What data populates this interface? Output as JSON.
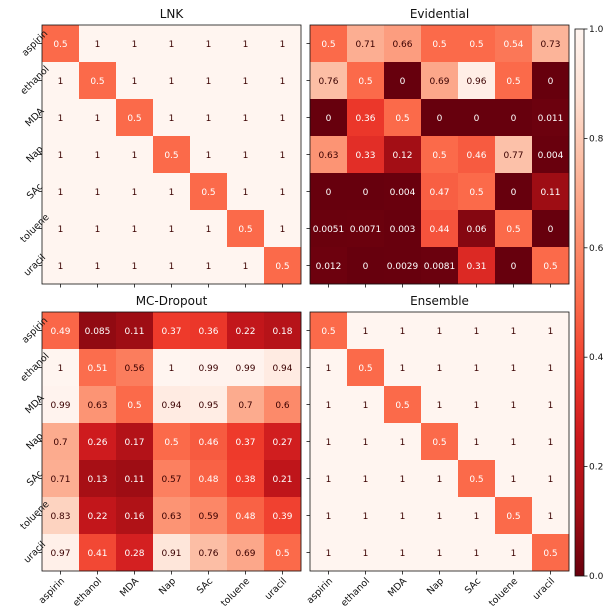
{
  "chart_data": {
    "type": "heatmap",
    "categories": [
      "aspirin",
      "ethanol",
      "MDA",
      "Nap",
      "SAc",
      "toluene",
      "uracil"
    ],
    "colorbar": {
      "ticks": [
        0.0,
        0.2,
        0.4,
        0.6,
        0.8,
        1.0
      ],
      "tick_labels": [
        "0.0",
        "0.2",
        "0.4",
        "0.6",
        "0.8",
        "1.0"
      ],
      "vmin": 0,
      "vmax": 1,
      "colormap": "Reds (reversed)"
    },
    "panels": [
      {
        "title": "LNK",
        "values": [
          [
            0.5,
            1,
            1,
            1,
            1,
            1,
            1
          ],
          [
            1,
            0.5,
            1,
            1,
            1,
            1,
            1
          ],
          [
            1,
            1,
            0.5,
            1,
            1,
            1,
            1
          ],
          [
            1,
            1,
            1,
            0.5,
            1,
            1,
            1
          ],
          [
            1,
            1,
            1,
            1,
            0.5,
            1,
            1
          ],
          [
            1,
            1,
            1,
            1,
            1,
            0.5,
            1
          ],
          [
            1,
            1,
            1,
            1,
            1,
            1,
            0.5
          ]
        ],
        "labels": [
          [
            "0.5",
            "1",
            "1",
            "1",
            "1",
            "1",
            "1"
          ],
          [
            "1",
            "0.5",
            "1",
            "1",
            "1",
            "1",
            "1"
          ],
          [
            "1",
            "1",
            "0.5",
            "1",
            "1",
            "1",
            "1"
          ],
          [
            "1",
            "1",
            "1",
            "0.5",
            "1",
            "1",
            "1"
          ],
          [
            "1",
            "1",
            "1",
            "1",
            "0.5",
            "1",
            "1"
          ],
          [
            "1",
            "1",
            "1",
            "1",
            "1",
            "0.5",
            "1"
          ],
          [
            "1",
            "1",
            "1",
            "1",
            "1",
            "1",
            "0.5"
          ]
        ]
      },
      {
        "title": "Evidential",
        "values": [
          [
            0.5,
            0.71,
            0.66,
            0.5,
            0.5,
            0.54,
            0.73
          ],
          [
            0.76,
            0.5,
            0,
            0.69,
            0.96,
            0.5,
            0
          ],
          [
            0,
            0.36,
            0.5,
            0,
            0,
            0,
            0.011
          ],
          [
            0.63,
            0.33,
            0.12,
            0.5,
            0.46,
            0.77,
            0.004
          ],
          [
            0,
            0,
            0.004,
            0.47,
            0.5,
            0,
            0.11
          ],
          [
            0.0051,
            0.0071,
            0.003,
            0.44,
            0.06,
            0.5,
            0
          ],
          [
            0.012,
            0,
            0.0029,
            0.0081,
            0.31,
            0,
            0.5
          ]
        ],
        "labels": [
          [
            "0.5",
            "0.71",
            "0.66",
            "0.5",
            "0.5",
            "0.54",
            "0.73"
          ],
          [
            "0.76",
            "0.5",
            "0",
            "0.69",
            "0.96",
            "0.5",
            "0"
          ],
          [
            "0",
            "0.36",
            "0.5",
            "0",
            "0",
            "0",
            "0.011"
          ],
          [
            "0.63",
            "0.33",
            "0.12",
            "0.5",
            "0.46",
            "0.77",
            "0.004"
          ],
          [
            "0",
            "0",
            "0.004",
            "0.47",
            "0.5",
            "0",
            "0.11"
          ],
          [
            "0.0051",
            "0.0071",
            "0.003",
            "0.44",
            "0.06",
            "0.5",
            "0"
          ],
          [
            "0.012",
            "0",
            "0.0029",
            "0.0081",
            "0.31",
            "0",
            "0.5"
          ]
        ]
      },
      {
        "title": "MC-Dropout",
        "values": [
          [
            0.49,
            0.085,
            0.11,
            0.37,
            0.36,
            0.22,
            0.18
          ],
          [
            1,
            0.51,
            0.56,
            1,
            0.99,
            0.99,
            0.94
          ],
          [
            0.99,
            0.63,
            0.5,
            0.94,
            0.95,
            0.7,
            0.6
          ],
          [
            0.7,
            0.26,
            0.17,
            0.5,
            0.46,
            0.37,
            0.27
          ],
          [
            0.71,
            0.13,
            0.11,
            0.57,
            0.48,
            0.38,
            0.21
          ],
          [
            0.83,
            0.22,
            0.16,
            0.63,
            0.59,
            0.48,
            0.39
          ],
          [
            0.97,
            0.41,
            0.28,
            0.91,
            0.76,
            0.69,
            0.5
          ]
        ],
        "labels": [
          [
            "0.49",
            "0.085",
            "0.11",
            "0.37",
            "0.36",
            "0.22",
            "0.18"
          ],
          [
            "1",
            "0.51",
            "0.56",
            "1",
            "0.99",
            "0.99",
            "0.94"
          ],
          [
            "0.99",
            "0.63",
            "0.5",
            "0.94",
            "0.95",
            "0.7",
            "0.6"
          ],
          [
            "0.7",
            "0.26",
            "0.17",
            "0.5",
            "0.46",
            "0.37",
            "0.27"
          ],
          [
            "0.71",
            "0.13",
            "0.11",
            "0.57",
            "0.48",
            "0.38",
            "0.21"
          ],
          [
            "0.83",
            "0.22",
            "0.16",
            "0.63",
            "0.59",
            "0.48",
            "0.39"
          ],
          [
            "0.97",
            "0.41",
            "0.28",
            "0.91",
            "0.76",
            "0.69",
            "0.5"
          ]
        ]
      },
      {
        "title": "Ensemble",
        "values": [
          [
            0.5,
            1,
            1,
            1,
            1,
            1,
            1
          ],
          [
            1,
            0.5,
            1,
            1,
            1,
            1,
            1
          ],
          [
            1,
            1,
            0.5,
            1,
            1,
            1,
            1
          ],
          [
            1,
            1,
            1,
            0.5,
            1,
            1,
            1
          ],
          [
            1,
            1,
            1,
            1,
            0.5,
            1,
            1
          ],
          [
            1,
            1,
            1,
            1,
            1,
            0.5,
            1
          ],
          [
            1,
            1,
            1,
            1,
            1,
            1,
            0.5
          ]
        ],
        "labels": [
          [
            "0.5",
            "1",
            "1",
            "1",
            "1",
            "1",
            "1"
          ],
          [
            "1",
            "0.5",
            "1",
            "1",
            "1",
            "1",
            "1"
          ],
          [
            "1",
            "1",
            "0.5",
            "1",
            "1",
            "1",
            "1"
          ],
          [
            "1",
            "1",
            "1",
            "0.5",
            "1",
            "1",
            "1"
          ],
          [
            "1",
            "1",
            "1",
            "1",
            "0.5",
            "1",
            "1"
          ],
          [
            "1",
            "1",
            "1",
            "1",
            "1",
            "0.5",
            "1"
          ],
          [
            "1",
            "1",
            "1",
            "1",
            "1",
            "1",
            "0.5"
          ]
        ]
      }
    ]
  }
}
